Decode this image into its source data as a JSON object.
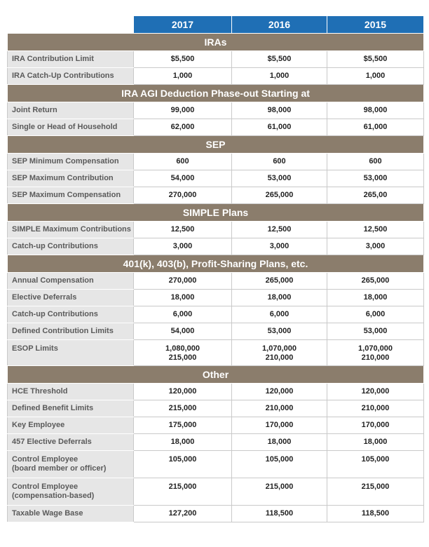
{
  "header": {
    "columns": [
      "2017",
      "2016",
      "2015"
    ]
  },
  "sections": [
    {
      "title": "IRAs",
      "rows": [
        {
          "label": [
            "IRA Contribution Limit"
          ],
          "values": [
            [
              "$5,500"
            ],
            [
              "$5,500"
            ],
            [
              "$5,500"
            ]
          ]
        },
        {
          "label": [
            "IRA Catch-Up Contributions"
          ],
          "values": [
            [
              "1,000"
            ],
            [
              "1,000"
            ],
            [
              "1,000"
            ]
          ]
        }
      ]
    },
    {
      "title": "IRA AGI Deduction Phase-out Starting at",
      "rows": [
        {
          "label": [
            "Joint Return"
          ],
          "values": [
            [
              "99,000"
            ],
            [
              "98,000"
            ],
            [
              "98,000"
            ]
          ]
        },
        {
          "label": [
            "Single or Head of Household"
          ],
          "values": [
            [
              "62,000"
            ],
            [
              "61,000"
            ],
            [
              "61,000"
            ]
          ]
        }
      ]
    },
    {
      "title": "SEP",
      "rows": [
        {
          "label": [
            "SEP Minimum Compensation"
          ],
          "values": [
            [
              "600"
            ],
            [
              "600"
            ],
            [
              "600"
            ]
          ]
        },
        {
          "label": [
            "SEP Maximum Contribution"
          ],
          "values": [
            [
              "54,000"
            ],
            [
              "53,000"
            ],
            [
              "53,000"
            ]
          ]
        },
        {
          "label": [
            "SEP Maximum Compensation"
          ],
          "values": [
            [
              "270,000"
            ],
            [
              "265,000"
            ],
            [
              "265,00"
            ]
          ]
        }
      ]
    },
    {
      "title": "SIMPLE Plans",
      "rows": [
        {
          "label": [
            "SIMPLE Maximum Contributions"
          ],
          "values": [
            [
              "12,500"
            ],
            [
              "12,500"
            ],
            [
              "12,500"
            ]
          ]
        },
        {
          "label": [
            "Catch-up Contributions"
          ],
          "values": [
            [
              "3,000"
            ],
            [
              "3,000"
            ],
            [
              "3,000"
            ]
          ]
        }
      ]
    },
    {
      "title": "401(k), 403(b), Profit-Sharing Plans, etc.",
      "rows": [
        {
          "label": [
            "Annual Compensation"
          ],
          "values": [
            [
              "270,000"
            ],
            [
              "265,000"
            ],
            [
              "265,000"
            ]
          ]
        },
        {
          "label": [
            "Elective Deferrals"
          ],
          "values": [
            [
              "18,000"
            ],
            [
              "18,000"
            ],
            [
              "18,000"
            ]
          ]
        },
        {
          "label": [
            "Catch-up Contributions"
          ],
          "values": [
            [
              "6,000"
            ],
            [
              "6,000"
            ],
            [
              "6,000"
            ]
          ]
        },
        {
          "label": [
            "Defined Contribution Limits"
          ],
          "values": [
            [
              "54,000"
            ],
            [
              "53,000"
            ],
            [
              "53,000"
            ]
          ]
        },
        {
          "label": [
            "ESOP Limits"
          ],
          "values": [
            [
              "1,080,000",
              "215,000"
            ],
            [
              "1,070,000",
              "210,000"
            ],
            [
              "1,070,000",
              "210,000"
            ]
          ]
        }
      ]
    },
    {
      "title": "Other",
      "rows": [
        {
          "label": [
            "HCE Threshold"
          ],
          "values": [
            [
              "120,000"
            ],
            [
              "120,000"
            ],
            [
              "120,000"
            ]
          ]
        },
        {
          "label": [
            "Defined Benefit Limits"
          ],
          "values": [
            [
              "215,000"
            ],
            [
              "210,000"
            ],
            [
              "210,000"
            ]
          ]
        },
        {
          "label": [
            "Key Employee"
          ],
          "values": [
            [
              "175,000"
            ],
            [
              "170,000"
            ],
            [
              "170,000"
            ]
          ]
        },
        {
          "label": [
            "457 Elective Deferrals"
          ],
          "values": [
            [
              "18,000"
            ],
            [
              "18,000"
            ],
            [
              "18,000"
            ]
          ]
        },
        {
          "label": [
            "Control Employee",
            "(board member or officer)"
          ],
          "values": [
            [
              "105,000"
            ],
            [
              "105,000"
            ],
            [
              "105,000"
            ]
          ]
        },
        {
          "label": [
            "Control Employee",
            "(compensation-based)"
          ],
          "values": [
            [
              "215,000"
            ],
            [
              "215,000"
            ],
            [
              "215,000"
            ]
          ]
        },
        {
          "label": [
            "Taxable Wage Base"
          ],
          "values": [
            [
              "127,200"
            ],
            [
              "118,500"
            ],
            [
              "118,500"
            ]
          ]
        }
      ]
    }
  ]
}
